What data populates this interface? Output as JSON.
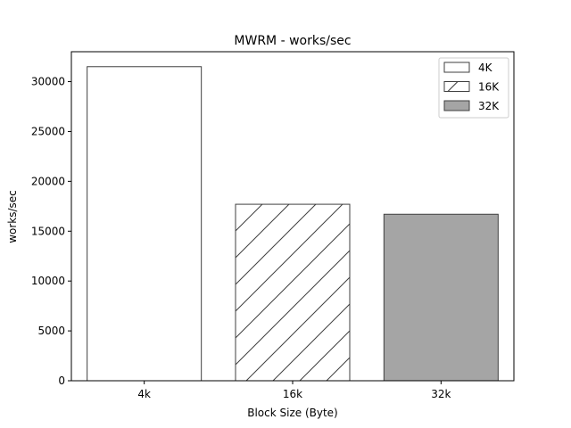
{
  "chart_data": {
    "type": "bar",
    "title": "MWRM - works/sec",
    "xlabel": "Block Size (Byte)",
    "ylabel": "works/sec",
    "categories": [
      "4k",
      "16k",
      "32k"
    ],
    "values": [
      31500,
      17700,
      16700
    ],
    "ylim": [
      0,
      33000
    ],
    "yticks": [
      0,
      5000,
      10000,
      15000,
      20000,
      25000,
      30000
    ],
    "grid": false,
    "legend": {
      "placement": "top-right",
      "entries": [
        {
          "label": "4K",
          "fill": "#ffffff",
          "hatch": "none"
        },
        {
          "label": "16K",
          "fill": "#ffffff",
          "hatch": "diagonal"
        },
        {
          "label": "32K",
          "fill": "#a5a5a5",
          "hatch": "none"
        }
      ]
    },
    "colors": {
      "edge": "#3f3f3f",
      "hatch": "#3f3f3f",
      "bar_32k": "#a5a5a5"
    }
  }
}
